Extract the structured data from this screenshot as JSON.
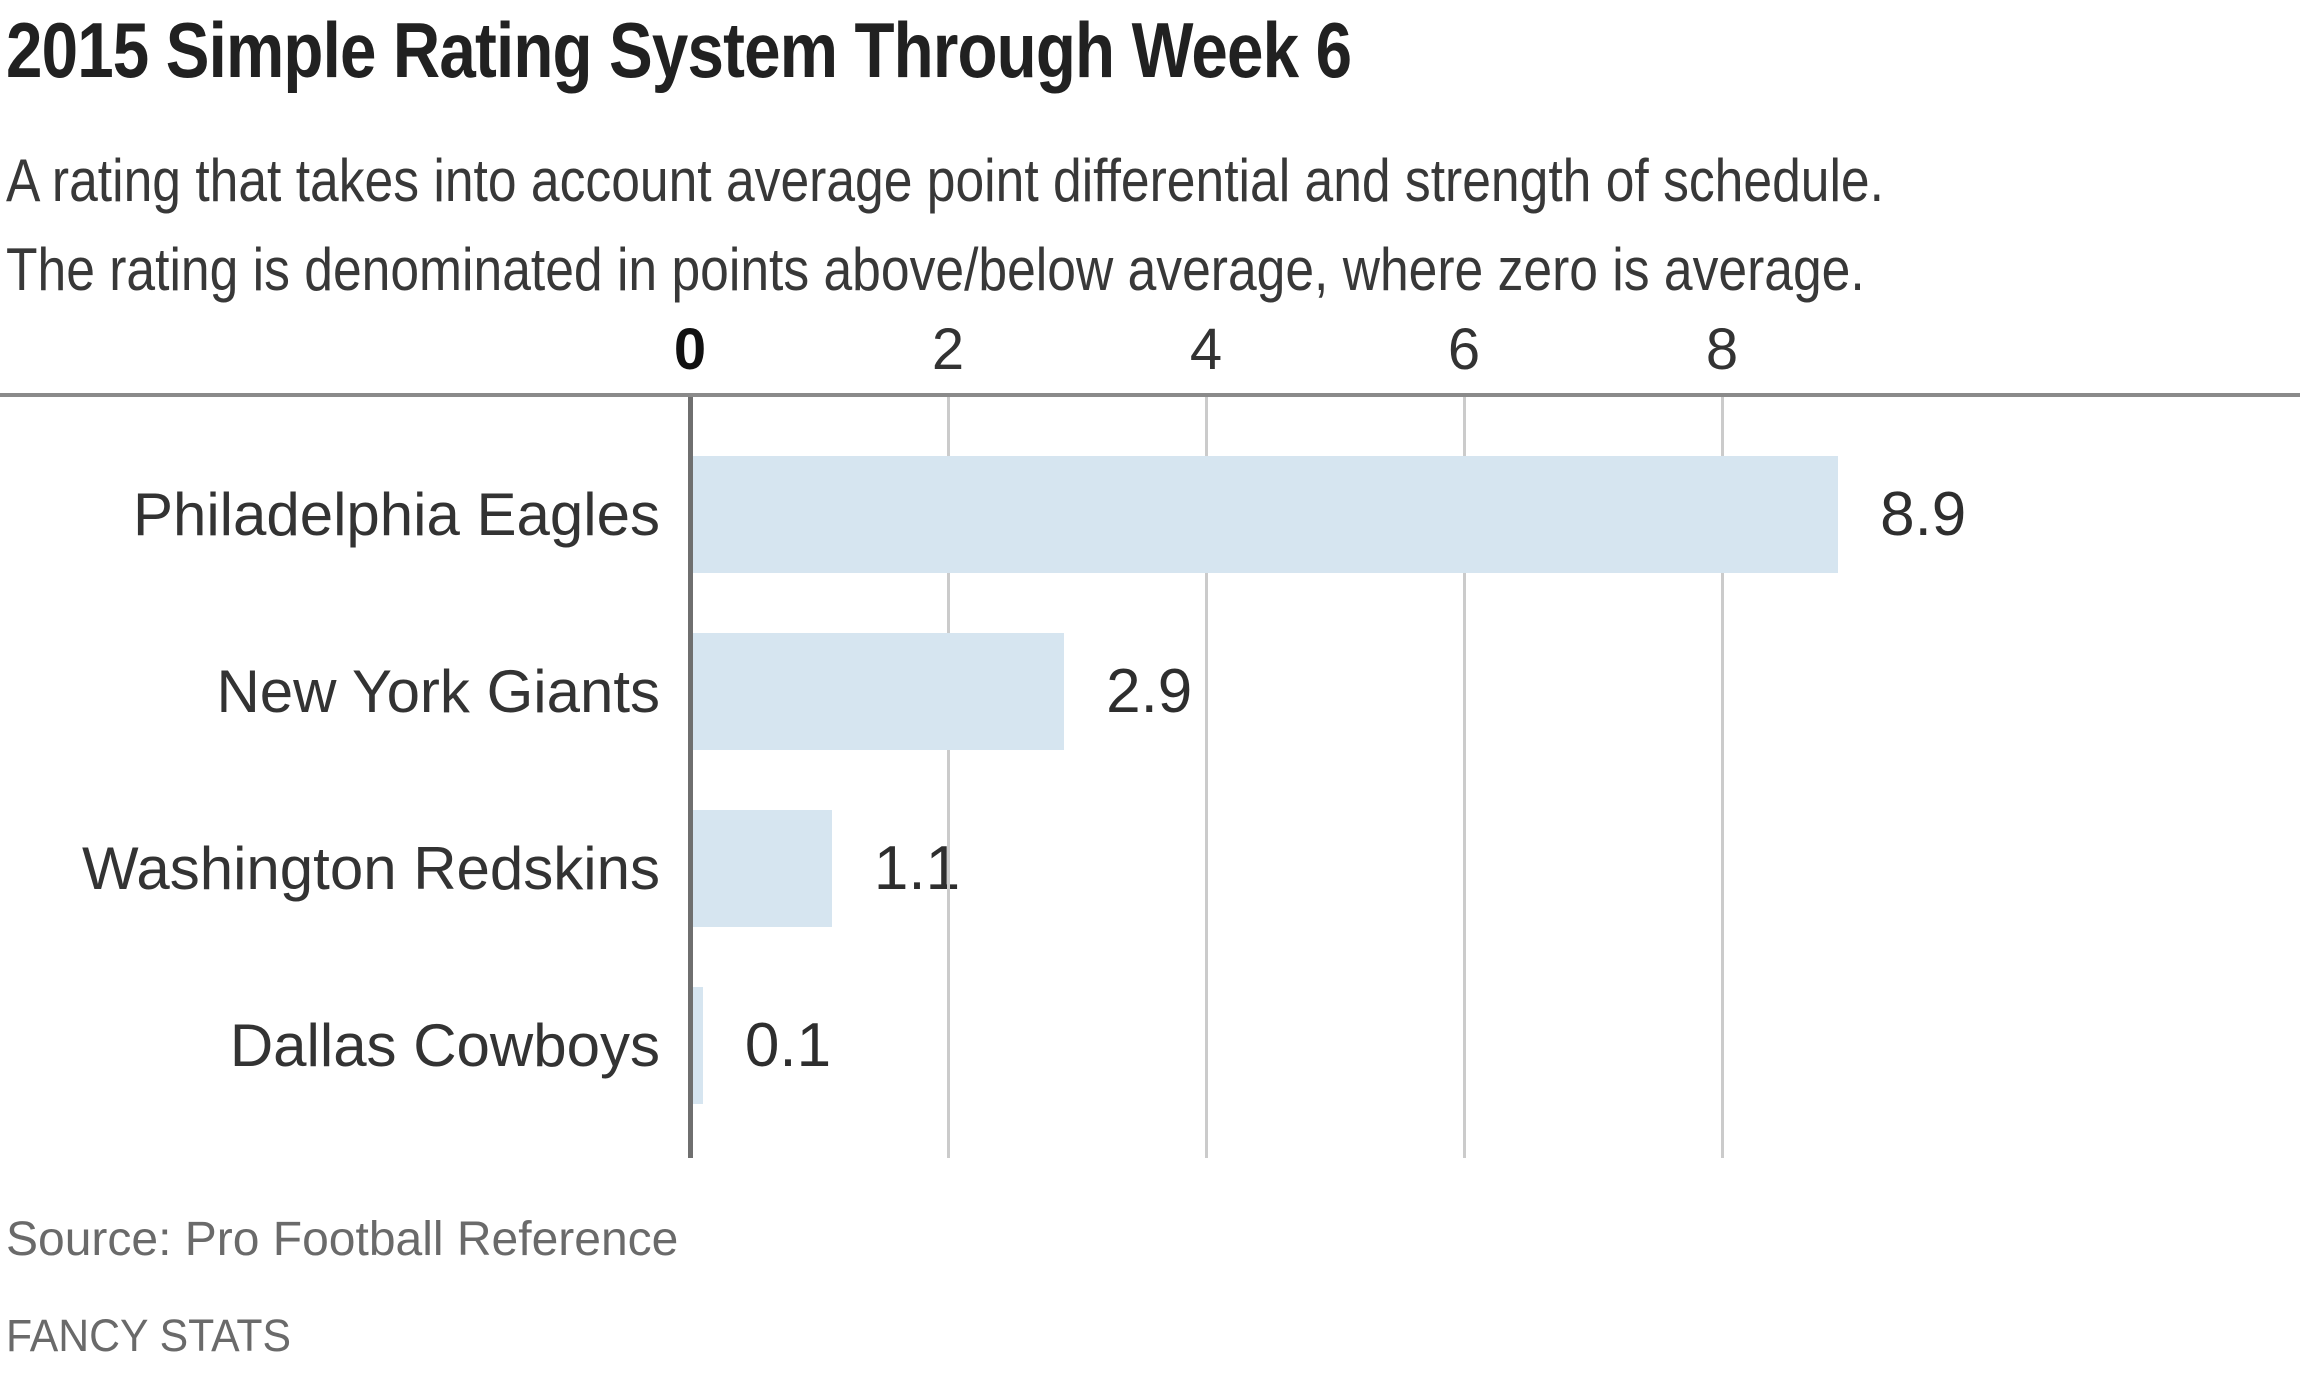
{
  "header": {
    "title": "2015 Simple Rating System Through Week 6",
    "subtitle_line1": "A rating that takes into account average point differential and strength of schedule.",
    "subtitle_line2": "The rating is denominated in points above/below average, where zero is average."
  },
  "chart_data": {
    "type": "bar",
    "orientation": "horizontal",
    "title": "2015 Simple Rating System Through Week 6",
    "subtitle": [
      "A rating that takes into account average point differential and strength of schedule.",
      "The rating is denominated in points above/below average, where zero is average."
    ],
    "categories": [
      "Philadelphia Eagles",
      "New York Giants",
      "Washington Redskins",
      "Dallas Cowboys"
    ],
    "values": [
      8.9,
      2.9,
      1.1,
      0.1
    ],
    "value_labels": [
      "8.9",
      "2.9",
      "1.1",
      "0.1"
    ],
    "x_ticks": [
      "0",
      "2",
      "4",
      "6",
      "8"
    ],
    "x_tick_values": [
      0,
      2,
      4,
      6,
      8
    ],
    "xlim": [
      0,
      12.5
    ],
    "xlabel": "",
    "ylabel": "",
    "grid": true,
    "legend_position": "none",
    "bar_color": "#d6e5f0",
    "axis_line_color": "#8a8a8a",
    "grid_color": "#cbcbcb",
    "zero_line_color": "#6f6f6f"
  },
  "footer": {
    "source": "Source: Pro Football Reference",
    "brand": "FANCY STATS"
  }
}
